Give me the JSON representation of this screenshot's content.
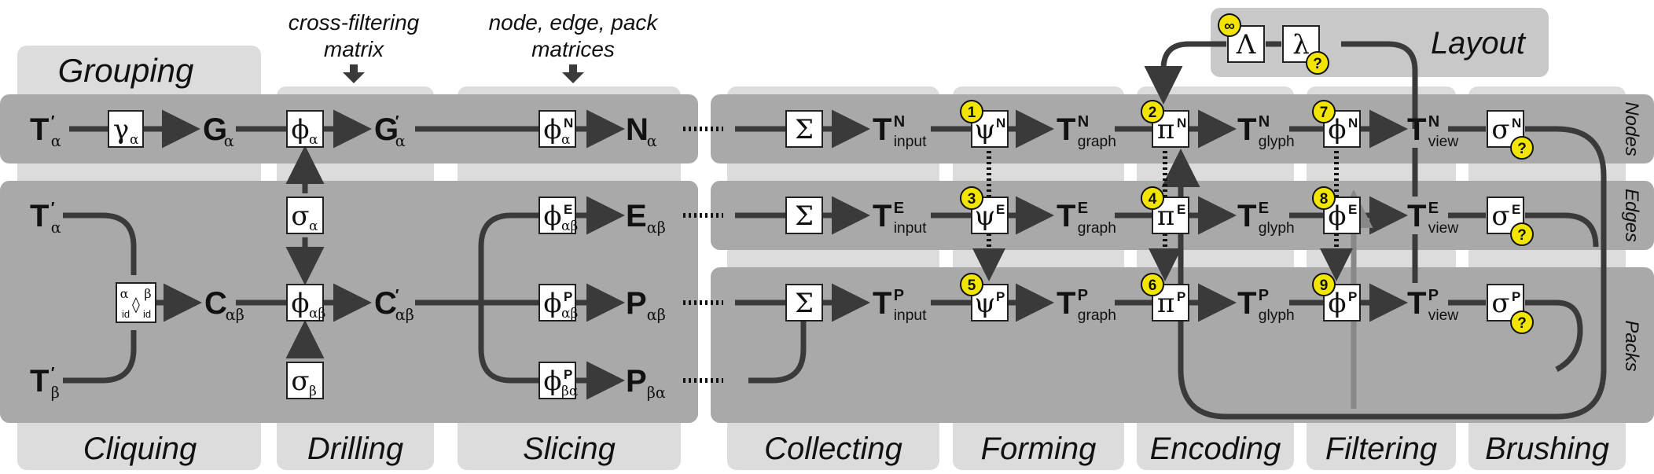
{
  "stage_labels": {
    "grouping": "Grouping",
    "cliquing": "Cliquing",
    "drilling": "Drilling",
    "slicing": "Slicing",
    "collecting": "Collecting",
    "forming": "Forming",
    "encoding": "Encoding",
    "filtering": "Filtering",
    "brushing": "Brushing",
    "layout": "Layout"
  },
  "annotations": {
    "cross_filter_1": "cross-filtering",
    "cross_filter_2": "matrix",
    "nep_1": "node, edge, pack",
    "nep_2": "matrices"
  },
  "row_labels": {
    "nodes": "Nodes",
    "edges": "Edges",
    "packs": "Packs"
  },
  "tokens": {
    "T_alpha": {
      "b": "T",
      "sub": "α",
      "sup": "′"
    },
    "T_alpha2": {
      "b": "T",
      "sub": "α",
      "sup": "′"
    },
    "T_beta": {
      "b": "T",
      "sub": "β",
      "sup": "′"
    },
    "G": {
      "b": "G",
      "sub": "α",
      "sup": ""
    },
    "G_prime": {
      "b": "G",
      "sub": "α",
      "sup": "′"
    },
    "C": {
      "b": "C",
      "sub": "αβ",
      "sup": ""
    },
    "C_prime": {
      "b": "C",
      "sub": "αβ",
      "sup": "′"
    },
    "N": {
      "b": "N",
      "sub": "α",
      "sup": ""
    },
    "E": {
      "b": "E",
      "sub": "αβ",
      "sup": ""
    },
    "P_ab": {
      "b": "P",
      "sub": "αβ",
      "sup": ""
    },
    "P_ba": {
      "b": "P",
      "sub": "βα",
      "sup": ""
    },
    "Tin_N": {
      "b": "T",
      "sub": "input",
      "sup": "N"
    },
    "Tin_E": {
      "b": "T",
      "sub": "input",
      "sup": "E"
    },
    "Tin_P": {
      "b": "T",
      "sub": "input",
      "sup": "P"
    },
    "Tgr_N": {
      "b": "T",
      "sub": "graph",
      "sup": "N"
    },
    "Tgr_E": {
      "b": "T",
      "sub": "graph",
      "sup": "E"
    },
    "Tgr_P": {
      "b": "T",
      "sub": "graph",
      "sup": "P"
    },
    "Tgl_N": {
      "b": "T",
      "sub": "glyph",
      "sup": "N"
    },
    "Tgl_E": {
      "b": "T",
      "sub": "glyph",
      "sup": "E"
    },
    "Tgl_P": {
      "b": "T",
      "sub": "glyph",
      "sup": "P"
    },
    "Tvw_N": {
      "b": "T",
      "sub": "view",
      "sup": "N"
    },
    "Tvw_E": {
      "b": "T",
      "sub": "view",
      "sup": "E"
    },
    "Tvw_P": {
      "b": "T",
      "sub": "view",
      "sup": "P"
    }
  },
  "operators": {
    "gamma": {
      "m": "γ",
      "sub": "α",
      "sup": ""
    },
    "phi_a": {
      "m": "ϕ",
      "sub": "α",
      "sup": ""
    },
    "sigma_a": {
      "m": "σ",
      "sub": "α",
      "sup": ""
    },
    "phi_ab": {
      "m": "ϕ",
      "sub": "αβ",
      "sup": ""
    },
    "sigma_b": {
      "m": "σ",
      "sub": "β",
      "sup": ""
    },
    "phiN": {
      "m": "ϕ",
      "sub": "α",
      "sup": "N"
    },
    "phiE": {
      "m": "ϕ",
      "sub": "αβ",
      "sup": "E"
    },
    "phiPab": {
      "m": "ϕ",
      "sub": "αβ",
      "sup": "P"
    },
    "phiPba": {
      "m": "ϕ",
      "sub": "βα",
      "sup": "P"
    },
    "sum1": {
      "m": "Σ",
      "sub": "",
      "sup": ""
    },
    "sum2": {
      "m": "Σ",
      "sub": "",
      "sup": ""
    },
    "sum3": {
      "m": "Σ",
      "sub": "",
      "sup": ""
    },
    "psiN": {
      "m": "ψ",
      "sub": "",
      "sup": "N"
    },
    "psiE": {
      "m": "ψ",
      "sub": "",
      "sup": "E"
    },
    "psiP": {
      "m": "ψ",
      "sub": "",
      "sup": "P"
    },
    "piN": {
      "m": "π",
      "sub": "",
      "sup": "N"
    },
    "piE": {
      "m": "π",
      "sub": "",
      "sup": "E"
    },
    "piP": {
      "m": "π",
      "sub": "",
      "sup": "P"
    },
    "fN": {
      "m": "ϕ",
      "sub": "",
      "sup": "N"
    },
    "fE": {
      "m": "ϕ",
      "sub": "",
      "sup": "E"
    },
    "fP": {
      "m": "ϕ",
      "sub": "",
      "sup": "P"
    },
    "sN": {
      "m": "σ",
      "sub": "",
      "sup": "N"
    },
    "sE": {
      "m": "σ",
      "sub": "",
      "sup": "E"
    },
    "sP": {
      "m": "σ",
      "sub": "",
      "sup": "P"
    },
    "Lambda": {
      "m": "Λ",
      "sub": "",
      "sup": ""
    },
    "lambda": {
      "m": "λ",
      "sub": "",
      "sup": ""
    }
  },
  "clique_box": {
    "a": "α",
    "b": "β",
    "id1": "id",
    "id2": "id",
    "diamond": "◊"
  },
  "badges": {
    "b1": "1",
    "b2": "2",
    "b3": "3",
    "b4": "4",
    "b5": "5",
    "b6": "6",
    "b7": "7",
    "b8": "8",
    "b9": "9",
    "inf": "∞",
    "q_lambda": "?",
    "q_sN": "?",
    "q_sE": "?",
    "q_sP": "?"
  },
  "colors": {
    "band": "#a9a9a9",
    "stage": "#dcdcdc",
    "line": "#3a3a3a",
    "badge": "#f2e600",
    "box": "#ffffff"
  }
}
